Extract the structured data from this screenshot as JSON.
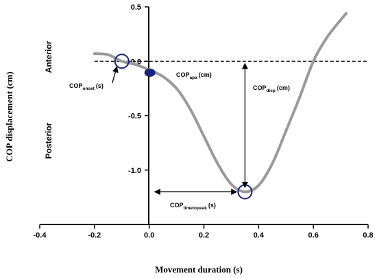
{
  "chart_data": {
    "type": "line",
    "xlabel": "Movement duration (s)",
    "ylabel": "COP displacement (cm)",
    "xlim": [
      -0.4,
      0.8
    ],
    "ylim": [
      -1.5,
      0.5
    ],
    "x_ticks": [
      -0.4,
      -0.2,
      0.0,
      0.2,
      0.4,
      0.6,
      0.8
    ],
    "x_tick_labels": [
      "-0.4",
      "-0.2",
      "0.0",
      "0.2",
      "0.4",
      "0.6",
      "0.8"
    ],
    "y_ticks": [
      0.5,
      0.0,
      -0.5,
      -1.0
    ],
    "y_tick_labels": [
      "0.5",
      "0.0",
      "-0.5",
      "-1.0"
    ],
    "region_labels": {
      "anterior": "Anterior",
      "posterior": "Posterior"
    },
    "series": [
      {
        "color": "#9a9a9a",
        "x": [
          -0.2,
          -0.15,
          -0.1,
          -0.05,
          0.0,
          0.05,
          0.1,
          0.15,
          0.2,
          0.25,
          0.3,
          0.35,
          0.4,
          0.45,
          0.5,
          0.55,
          0.6,
          0.65,
          0.7,
          0.72
        ],
        "y": [
          0.07,
          0.06,
          0.0,
          -0.03,
          -0.08,
          -0.14,
          -0.25,
          -0.44,
          -0.69,
          -0.94,
          -1.13,
          -1.2,
          -1.14,
          -0.94,
          -0.64,
          -0.33,
          0.0,
          0.22,
          0.38,
          0.44
        ]
      }
    ],
    "baseline_y": 0.0,
    "markers": [
      {
        "type": "open-circle",
        "x": -0.1,
        "y": 0.0
      },
      {
        "type": "filled-ellipse",
        "x": 0.0,
        "y": -0.08
      },
      {
        "type": "open-circle",
        "x": 0.35,
        "y": -1.2
      }
    ],
    "annotations": {
      "cop_onset": {
        "main": "COP",
        "sub": "onset",
        "unit": "(s)"
      },
      "cop_apa": {
        "main": "COP",
        "sub": "apa",
        "unit": "(cm)"
      },
      "cop_disp": {
        "main": "COP",
        "sub": "disp",
        "unit": "(cm)"
      },
      "cop_timetopeak": {
        "main": "COP",
        "sub": "timetopeak",
        "unit": "(s)"
      }
    },
    "colors": {
      "curve": "#9a9a9a",
      "marker": "#1a237e",
      "axes": "#000000"
    }
  }
}
